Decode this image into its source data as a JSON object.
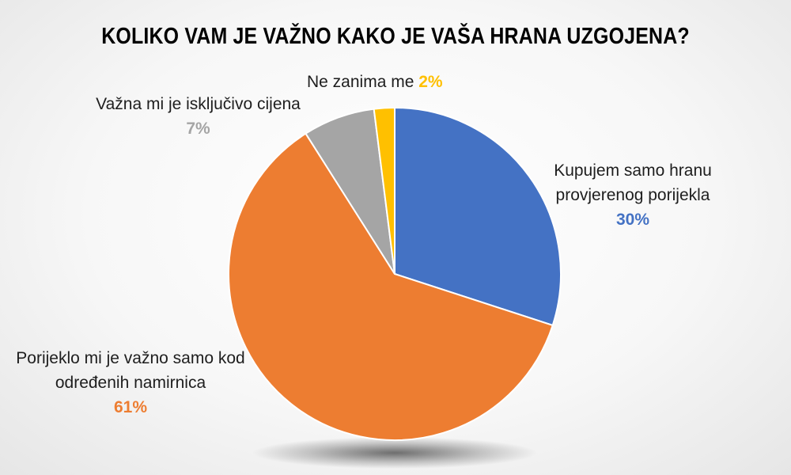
{
  "title": "KOLIKO VAM JE VAŽNO KAKO JE VAŠA HRANA UZGOJENA?",
  "chart_data": {
    "type": "pie",
    "title": "KOLIKO VAM JE VAŽNO KAKO JE VAŠA HRANA UZGOJENA?",
    "legend": "none",
    "start": "12 o'clock",
    "direction": "clockwise",
    "slices": [
      {
        "label_lines": [
          "Kupujem samo hranu",
          "provjerenog porijekla"
        ],
        "value": 30,
        "value_label": "30%",
        "color": "#4472C4"
      },
      {
        "label_lines": [
          "Porijeklo mi je važno samo kod",
          "određenih namirnica"
        ],
        "value": 61,
        "value_label": "61%",
        "color": "#ED7D31"
      },
      {
        "label_lines": [
          "Važna mi je isključivo cijena"
        ],
        "value": 7,
        "value_label": "7%",
        "color": "#A5A5A5"
      },
      {
        "label_lines": [
          "Ne zanima me"
        ],
        "value": 2,
        "value_label": "2%",
        "color": "#FFC000"
      }
    ]
  }
}
